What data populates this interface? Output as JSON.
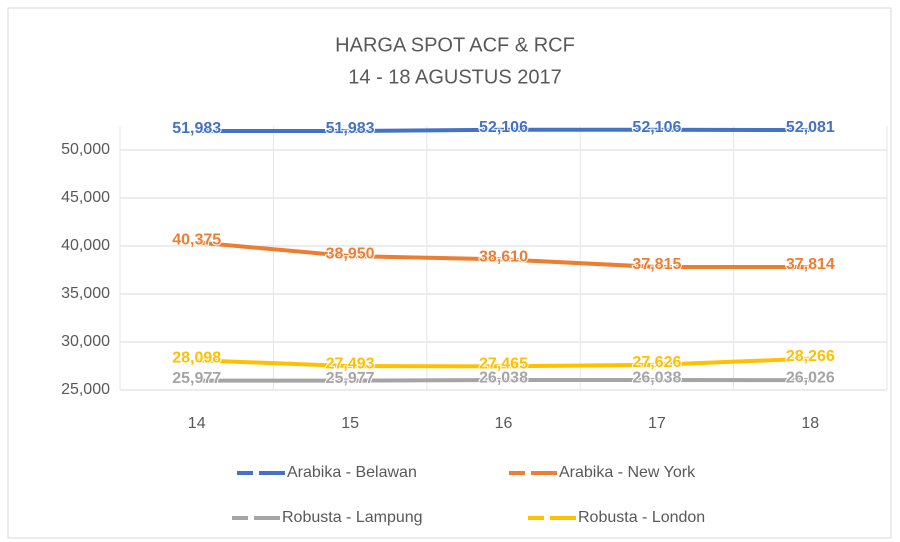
{
  "chart_data": {
    "type": "line",
    "title": "HARGA SPOT ACF & RCF",
    "subtitle": "14 - 18 AGUSTUS 2017",
    "categories": [
      "14",
      "15",
      "16",
      "17",
      "18"
    ],
    "series": [
      {
        "name": "Arabika - Belawan",
        "color": "#4472c4",
        "values": [
          51983,
          51983,
          52106,
          52106,
          52081
        ],
        "value_labels": [
          "51,983",
          "51,983",
          "52,106",
          "52,106",
          "52,081"
        ]
      },
      {
        "name": "Arabika - New York",
        "color": "#ed7d31",
        "values": [
          40375,
          38950,
          38610,
          37815,
          37814
        ],
        "value_labels": [
          "40,375",
          "38,950",
          "38,610",
          "37,815",
          "37,814"
        ]
      },
      {
        "name": "Robusta - Lampung",
        "color": "#a5a5a5",
        "values": [
          25977,
          25977,
          26038,
          26038,
          26026
        ],
        "value_labels": [
          "25,977",
          "25,977",
          "26,038",
          "26,038",
          "26,026"
        ]
      },
      {
        "name": "Robusta - London",
        "color": "#ffc000",
        "values": [
          28098,
          27493,
          27465,
          27626,
          28266
        ],
        "value_labels": [
          "28,098",
          "27,493",
          "27,465",
          "27,626",
          "28,266"
        ]
      }
    ],
    "ylim": [
      25000,
      52500
    ],
    "yticks": [
      {
        "value": 25000,
        "label": "25,000"
      },
      {
        "value": 30000,
        "label": "30,000"
      },
      {
        "value": 35000,
        "label": "35,000"
      },
      {
        "value": 40000,
        "label": "40,000"
      },
      {
        "value": 45000,
        "label": "45,000"
      },
      {
        "value": 50000,
        "label": "50,000"
      }
    ],
    "grid": true,
    "legend": "bottom"
  }
}
